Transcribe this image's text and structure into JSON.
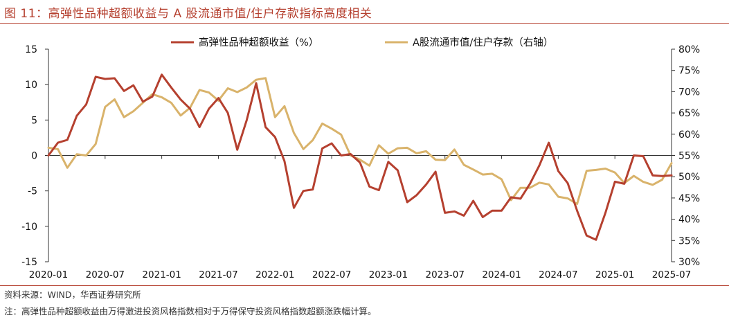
{
  "figure": {
    "title": "图 11：高弹性品种超额收益与 A 股流通市值/住户存款指标高度相关",
    "source": "资料来源：WIND，华西证券研究所",
    "note": "注：高弹性品种超额收益由万得激进投资风格指数相对于万得保守投资风格指数超额涨跌幅计算。"
  },
  "colors": {
    "accent": "#b5402f",
    "series_excess": "#b5402f",
    "series_ratio": "#d9b36b"
  },
  "chart_data": {
    "type": "line",
    "legend_position": "top",
    "grid": false,
    "x_tick_labels": [
      "2020-01",
      "2020-07",
      "2021-01",
      "2021-07",
      "2022-01",
      "2022-07",
      "2023-01",
      "2023-07",
      "2024-01",
      "2024-07",
      "2025-01",
      "2025-07"
    ],
    "y_left": {
      "range": [
        -15,
        15
      ],
      "ticks": [
        "15",
        "10",
        "5",
        "0",
        "-5",
        "-10",
        "-15"
      ]
    },
    "y_right": {
      "range": [
        30,
        80
      ],
      "ticks": [
        "80%",
        "75%",
        "70%",
        "65%",
        "60%",
        "55%",
        "50%",
        "45%",
        "40%",
        "35%",
        "30%"
      ]
    },
    "x": [
      "2020-01",
      "2020-02",
      "2020-03",
      "2020-04",
      "2020-05",
      "2020-06",
      "2020-07",
      "2020-08",
      "2020-09",
      "2020-10",
      "2020-11",
      "2020-12",
      "2021-01",
      "2021-02",
      "2021-03",
      "2021-04",
      "2021-05",
      "2021-06",
      "2021-07",
      "2021-08",
      "2021-09",
      "2021-10",
      "2021-11",
      "2021-12",
      "2022-01",
      "2022-02",
      "2022-03",
      "2022-04",
      "2022-05",
      "2022-06",
      "2022-07",
      "2022-08",
      "2022-09",
      "2022-10",
      "2022-11",
      "2022-12",
      "2023-01",
      "2023-02",
      "2023-03",
      "2023-04",
      "2023-05",
      "2023-06",
      "2023-07",
      "2023-08",
      "2023-09",
      "2023-10",
      "2023-11",
      "2023-12",
      "2024-01",
      "2024-02",
      "2024-03",
      "2024-04",
      "2024-05",
      "2024-06",
      "2024-07",
      "2024-08",
      "2024-09",
      "2024-10",
      "2024-11",
      "2024-12",
      "2025-01",
      "2025-02",
      "2025-03",
      "2025-04",
      "2025-05",
      "2025-06",
      "2025-07"
    ],
    "series": [
      {
        "name": "高弹性品种超额收益（%）",
        "axis": "left",
        "values": [
          0,
          1.8,
          2.2,
          5.6,
          7.2,
          11.1,
          10.8,
          10.9,
          9.1,
          9.9,
          7.6,
          8.3,
          11.4,
          9.6,
          7.9,
          6.6,
          4.0,
          6.6,
          8.1,
          6.0,
          0.8,
          5.0,
          10.2,
          4.0,
          2.6,
          -0.8,
          -7.4,
          -5.0,
          -4.8,
          1.0,
          1.7,
          0.0,
          0.2,
          -1.0,
          -4.4,
          -4.9,
          -0.9,
          -2.1,
          -6.6,
          -5.6,
          -4.1,
          -2.3,
          -8.1,
          -7.9,
          -8.5,
          -6.4,
          -8.7,
          -7.8,
          -7.8,
          -5.9,
          -6.1,
          -4.0,
          -1.4,
          1.8,
          -2.2,
          -3.9,
          -7.8,
          -11.3,
          -11.9,
          -8.1,
          -3.7,
          -4.0,
          0.0,
          -0.1,
          -2.8,
          -2.9,
          -2.8
        ]
      },
      {
        "name": "A股流通市值/住户存款（右轴）",
        "axis": "right",
        "values": [
          56.8,
          56.5,
          52.1,
          55.3,
          55.0,
          57.7,
          66.4,
          68.2,
          64.0,
          65.4,
          67.4,
          69.4,
          68.7,
          67.4,
          64.4,
          66.2,
          70.4,
          69.8,
          67.9,
          70.8,
          69.9,
          71.0,
          72.8,
          73.2,
          64.0,
          66.6,
          60.3,
          56.5,
          58.6,
          62.5,
          61.3,
          59.9,
          55.0,
          54.0,
          52.6,
          57.4,
          55.4,
          56.7,
          56.8,
          55.5,
          56.0,
          54.0,
          53.9,
          56.4,
          52.8,
          51.7,
          50.5,
          50.7,
          49.4,
          44.5,
          47.4,
          47.4,
          48.6,
          48.2,
          45.3,
          44.9,
          43.6,
          51.4,
          51.6,
          51.9,
          51.0,
          48.5,
          50.2,
          48.8,
          48.1,
          49.3,
          53.2
        ]
      }
    ]
  }
}
